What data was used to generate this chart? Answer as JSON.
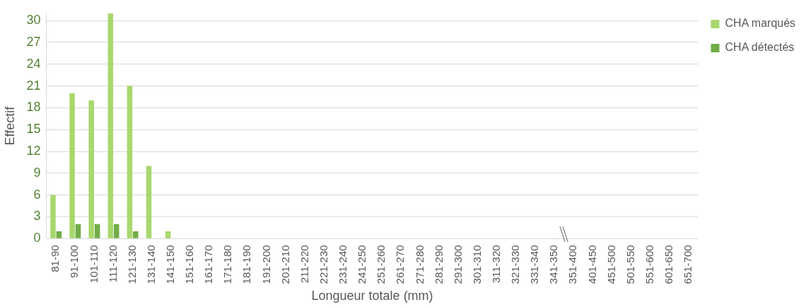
{
  "chart_data": {
    "type": "bar",
    "xlabel": "Longueur totale (mm)",
    "ylabel": "Effectif",
    "categories": [
      "81-90",
      "91-100",
      "101-110",
      "111-120",
      "121-130",
      "131-140",
      "141-150",
      "151-160",
      "161-170",
      "171-180",
      "181-190",
      "191-200",
      "201-210",
      "211-220",
      "221-230",
      "231-240",
      "241-250",
      "251-260",
      "261-270",
      "271-280",
      "281-290",
      "291-300",
      "301-310",
      "311-320",
      "321-330",
      "331-340",
      "341-350",
      "351-400",
      "401-450",
      "451-500",
      "501-550",
      "551-600",
      "601-650",
      "651-700"
    ],
    "series": [
      {
        "name": "CHA marqués",
        "color": "#a9d86e",
        "values": [
          6,
          20,
          19,
          31,
          21,
          10,
          1,
          0,
          0,
          0,
          0,
          0,
          0,
          0,
          0,
          0,
          0,
          0,
          0,
          0,
          0,
          0,
          0,
          0,
          0,
          0,
          0,
          0,
          0,
          0,
          0,
          0,
          0,
          0
        ]
      },
      {
        "name": "CHA détectés",
        "color": "#70ad47",
        "values": [
          1,
          2,
          2,
          2,
          1,
          0,
          0,
          0,
          0,
          0,
          0,
          0,
          0,
          0,
          0,
          0,
          0,
          0,
          0,
          0,
          0,
          0,
          0,
          0,
          0,
          0,
          0,
          0,
          0,
          0,
          0,
          0,
          0,
          0
        ]
      }
    ],
    "ylim": [
      0,
      31
    ],
    "yticks": [
      0,
      3,
      6,
      9,
      12,
      15,
      18,
      21,
      24,
      27,
      30
    ],
    "grid": "y",
    "legend": "top right"
  }
}
